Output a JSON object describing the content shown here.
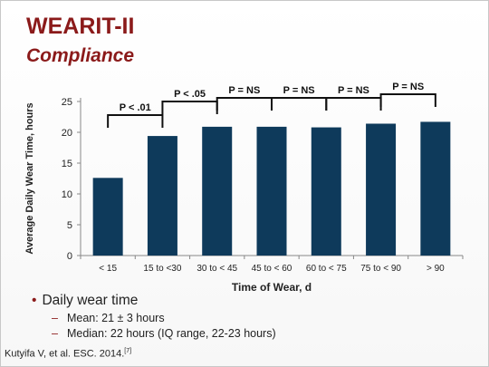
{
  "slide": {
    "title": "WEARIT-II",
    "subtitle": "Compliance",
    "bullet": "Daily wear time",
    "sub_bullets": [
      "Mean: 21 ± 3 hours",
      "Median: 22 hours (IQ range, 22-23 hours)"
    ],
    "citation": "Kutyifa V, et al. ESC. 2014.",
    "citation_ref": "[7]"
  },
  "colors": {
    "title": "#8b1a1a",
    "bar": "#0e3a5b",
    "bullet_marker": "#8b1a1a"
  },
  "chart_data": {
    "type": "bar",
    "categories": [
      "< 15",
      "15 to <30",
      "30 to < 45",
      "45 to < 60",
      "60 to < 75",
      "75 to < 90",
      "> 90"
    ],
    "values": [
      12.6,
      19.4,
      20.9,
      20.9,
      20.8,
      21.4,
      21.7
    ],
    "xlabel": "Time of Wear, d",
    "ylabel": "Average Daily Wear Time, hours",
    "ylim": [
      0,
      25
    ],
    "yticks": [
      0,
      5,
      10,
      15,
      20,
      25
    ],
    "grid": false,
    "annotations": [
      {
        "label": "P < .01",
        "from": 0,
        "to": 1
      },
      {
        "label": "P < .05",
        "from": 1,
        "to": 2
      },
      {
        "label": "P = NS",
        "from": 2,
        "to": 3
      },
      {
        "label": "P = NS",
        "from": 3,
        "to": 4
      },
      {
        "label": "P = NS",
        "from": 4,
        "to": 5
      },
      {
        "label": "P = NS",
        "from": 5,
        "to": 6
      }
    ]
  }
}
